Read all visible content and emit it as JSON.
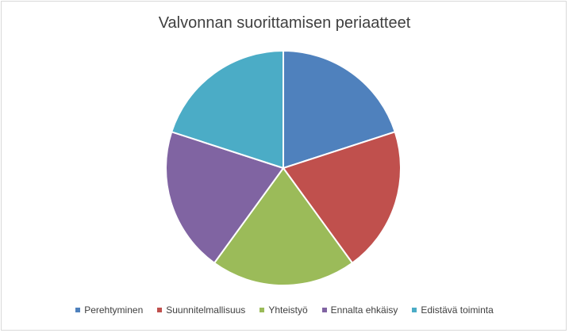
{
  "chart_data": {
    "type": "pie",
    "title": "Valvonnan suorittamisen periaatteet",
    "categories": [
      "Perehtyminen",
      "Suunnitelmallisuus",
      "Yhteistyö",
      "Ennalta ehkäisy",
      "Edistävä toiminta"
    ],
    "values": [
      20,
      20,
      20,
      20,
      20
    ],
    "colors": [
      "#4f81bd",
      "#c0504d",
      "#9bbb59",
      "#8064a2",
      "#4bacc6"
    ],
    "legend_position": "bottom",
    "start_angle": "12 o'clock, clockwise"
  }
}
